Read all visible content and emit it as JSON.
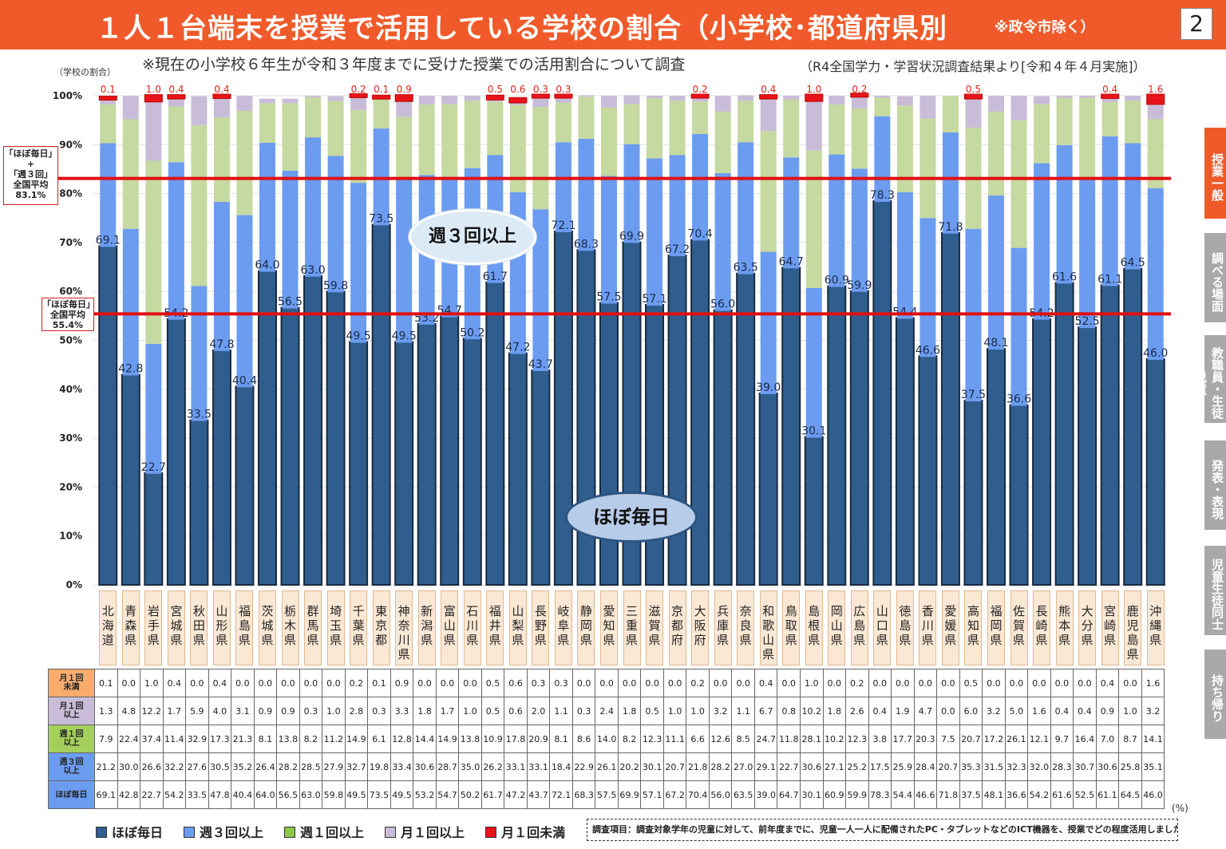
{
  "title": "１人１台端末を授業で活用している学校の割合（小学校･都道府県別",
  "title_note": "※政令市除く）",
  "page_number": "2",
  "subtitle": "※現在の小学校６年生が令和３年度までに受けた授業での活用割合について調査",
  "source_note": "（R4全国学力・学習状況調査結果より[令和４年４月実施]）",
  "y_unit": "（学校の割合）",
  "avg_high": {
    "line1": "「ほぼ毎日」",
    "line2": "+",
    "line3": "「週３回」",
    "line4": "全国平均",
    "value": "83.1%"
  },
  "avg_daily": {
    "line1": "「ほぼ毎日」",
    "line2": "全国平均",
    "value": "55.4%"
  },
  "bubble_weekly3": "週３回以上",
  "bubble_daily": "ほぼ毎日",
  "row_labels": [
    [
      "月１回",
      "未満"
    ],
    [
      "月１回",
      "以上"
    ],
    [
      "週１回",
      "以上"
    ],
    [
      "週３回",
      "以上"
    ],
    [
      "ほぼ毎日",
      ""
    ]
  ],
  "legend": [
    "ほぼ毎日",
    "週３回以上",
    "週１回以上",
    "月１回以上",
    "月１回未満"
  ],
  "survey_note": "調査項目：調査対象学年の児童に対して、前年度までに、児童一人一人に配備されたPC・タブレットなどのICT機器を、授業でどの程度活用しましたか",
  "pct_unit": "(%)",
  "side_tabs": [
    "授業一般",
    "調べる場面",
    "教職員・生徒児童",
    "発表・表現",
    "児童生徒同士",
    "持ち帰り"
  ],
  "chart_data": {
    "type": "bar",
    "stacked": true,
    "ylim": [
      0,
      100
    ],
    "yticks": [
      "0%",
      "10%",
      "20%",
      "30%",
      "40%",
      "50%",
      "60%",
      "70%",
      "80%",
      "90%",
      "100%"
    ],
    "categories": [
      "北海道",
      "青森県",
      "岩手県",
      "宮城県",
      "秋田県",
      "山形県",
      "福島県",
      "茨城県",
      "栃木県",
      "群馬県",
      "埼玉県",
      "千葉県",
      "東京都",
      "神奈川県",
      "新潟県",
      "富山県",
      "石川県",
      "福井県",
      "山梨県",
      "長野県",
      "岐阜県",
      "静岡県",
      "愛知県",
      "三重県",
      "滋賀県",
      "京都府",
      "大阪府",
      "兵庫県",
      "奈良県",
      "和歌山県",
      "鳥取県",
      "島根県",
      "岡山県",
      "広島県",
      "山口県",
      "徳島県",
      "香川県",
      "愛媛県",
      "高知県",
      "福岡県",
      "佐賀県",
      "長崎県",
      "熊本県",
      "大分県",
      "宮崎県",
      "鹿児島県",
      "沖縄県"
    ],
    "series": [
      {
        "name": "ほぼ毎日",
        "color": "#2f5e8e",
        "values": [
          69.1,
          42.8,
          22.7,
          54.2,
          33.5,
          47.8,
          40.4,
          64.0,
          56.5,
          63.0,
          59.8,
          49.5,
          73.5,
          49.5,
          53.2,
          54.7,
          50.2,
          61.7,
          47.2,
          43.7,
          72.1,
          68.3,
          57.5,
          69.9,
          57.1,
          67.2,
          70.4,
          56.0,
          63.5,
          39.0,
          64.7,
          30.1,
          60.9,
          59.9,
          78.3,
          54.4,
          46.6,
          71.8,
          37.5,
          48.1,
          36.6,
          54.2,
          61.6,
          52.5,
          61.1,
          64.5,
          46.0
        ]
      },
      {
        "name": "週３回以上",
        "color": "#6b9cf0",
        "values": [
          21.2,
          30.0,
          26.6,
          32.2,
          27.6,
          30.5,
          35.2,
          26.4,
          28.2,
          28.5,
          27.9,
          32.7,
          19.8,
          33.4,
          30.6,
          28.7,
          35.0,
          26.2,
          33.1,
          33.1,
          18.4,
          22.9,
          26.1,
          20.2,
          30.1,
          20.7,
          21.8,
          28.2,
          27.0,
          29.1,
          22.7,
          30.6,
          27.1,
          25.2,
          17.5,
          25.9,
          28.4,
          20.7,
          35.3,
          31.5,
          32.3,
          32.0,
          28.3,
          30.7,
          30.6,
          25.8,
          35.1
        ]
      },
      {
        "name": "週１回以上",
        "color": "#c5d9a0",
        "values": [
          7.9,
          22.4,
          37.4,
          11.4,
          32.9,
          17.3,
          21.3,
          8.1,
          13.8,
          8.2,
          11.2,
          14.9,
          6.1,
          12.8,
          14.4,
          14.9,
          13.8,
          10.9,
          17.8,
          20.9,
          8.1,
          8.6,
          14.0,
          8.2,
          12.3,
          11.1,
          6.6,
          12.6,
          8.5,
          24.7,
          11.8,
          28.1,
          10.2,
          12.3,
          3.8,
          17.7,
          20.3,
          7.5,
          20.7,
          17.2,
          26.1,
          12.1,
          9.7,
          16.4,
          7.0,
          8.7,
          14.1
        ]
      },
      {
        "name": "月１回以上",
        "color": "#c9bcd8",
        "values": [
          1.3,
          4.8,
          12.2,
          1.7,
          5.9,
          4.0,
          3.1,
          0.9,
          0.9,
          0.3,
          1.0,
          2.8,
          0.3,
          3.3,
          1.8,
          1.7,
          1.0,
          0.5,
          0.6,
          2.0,
          1.1,
          0.3,
          2.4,
          1.8,
          0.5,
          1.0,
          1.0,
          3.2,
          1.1,
          6.7,
          0.8,
          10.2,
          1.8,
          2.6,
          0.4,
          1.9,
          4.7,
          0.0,
          6.0,
          3.2,
          5.0,
          1.6,
          0.4,
          0.4,
          0.9,
          1.0,
          3.2
        ]
      },
      {
        "name": "月１回未満",
        "color": "#e8141a",
        "values": [
          0.1,
          0.0,
          1.0,
          0.4,
          0.0,
          0.4,
          0.0,
          0.0,
          0.0,
          0.0,
          0.0,
          0.2,
          0.1,
          0.9,
          0.0,
          0.0,
          0.0,
          0.5,
          0.6,
          0.3,
          0.3,
          0.0,
          0.0,
          0.0,
          0.0,
          0.0,
          0.2,
          0.0,
          0.0,
          0.4,
          0.0,
          1.0,
          0.0,
          0.2,
          0.0,
          0.0,
          0.0,
          0.0,
          0.5,
          0.0,
          0.0,
          0.0,
          0.0,
          0.0,
          0.4,
          0.0,
          1.6
        ]
      }
    ],
    "reference_lines": [
      {
        "label": "「ほぼ毎日」+「週３回」全国平均",
        "value": 83.1,
        "color": "#e01010"
      },
      {
        "label": "「ほぼ毎日」全国平均",
        "value": 55.4,
        "color": "#e01010"
      }
    ]
  }
}
